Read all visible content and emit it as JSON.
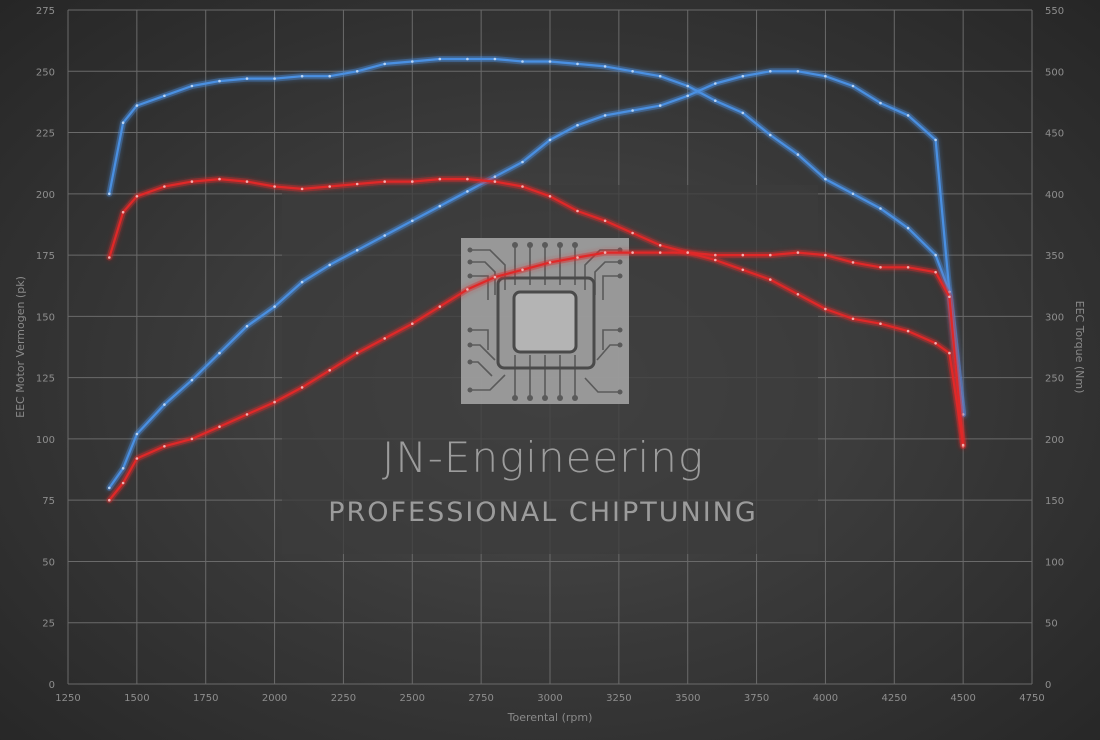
{
  "watermark": {
    "title": "JN-Engineering",
    "subtitle": "PROFESSIONAL CHIPTUNING",
    "emblem": "chip-logo"
  },
  "chart_data": {
    "type": "line",
    "xlabel": "Toerental (rpm)",
    "ylabel_left": "EEC Motor Vermogen (pk)",
    "ylabel_right": "EEC Torque (Nm)",
    "xlim": [
      1250,
      4750
    ],
    "ylim_left": [
      0,
      275
    ],
    "ylim_right": [
      0,
      550
    ],
    "x_ticks": [
      1250,
      1500,
      1750,
      2000,
      2250,
      2500,
      2750,
      3000,
      3250,
      3500,
      3750,
      4000,
      4250,
      4500,
      4750
    ],
    "y_ticks_left": [
      0,
      25,
      50,
      75,
      100,
      125,
      150,
      175,
      200,
      225,
      250,
      275
    ],
    "y_ticks_right": [
      0,
      50,
      100,
      150,
      200,
      250,
      300,
      350,
      400,
      450,
      500,
      550
    ],
    "grid": true,
    "colors": {
      "tuned": "#4a90e2",
      "stock": "#e02828"
    },
    "series": [
      {
        "id": "tuned-power",
        "axis": "left",
        "color": "#4a90e2",
        "x": [
          1400,
          1450,
          1500,
          1600,
          1700,
          1800,
          1900,
          2000,
          2100,
          2200,
          2300,
          2400,
          2500,
          2600,
          2700,
          2800,
          2900,
          3000,
          3100,
          3200,
          3300,
          3400,
          3500,
          3600,
          3700,
          3800,
          3900,
          4000,
          4100,
          4200,
          4300,
          4400,
          4450,
          4500
        ],
        "y": [
          80,
          88,
          102,
          114,
          124,
          135,
          146,
          154,
          164,
          171,
          177,
          183,
          189,
          195,
          201,
          207,
          213,
          222,
          228,
          232,
          234,
          236,
          240,
          245,
          248,
          250,
          250,
          248,
          244,
          237,
          232,
          222,
          160,
          110
        ]
      },
      {
        "id": "tuned-torque",
        "axis": "right",
        "color": "#4a90e2",
        "x": [
          1400,
          1450,
          1500,
          1600,
          1700,
          1800,
          1900,
          2000,
          2100,
          2200,
          2300,
          2400,
          2500,
          2600,
          2700,
          2800,
          2900,
          3000,
          3100,
          3200,
          3300,
          3400,
          3500,
          3600,
          3700,
          3800,
          3900,
          4000,
          4100,
          4200,
          4300,
          4400,
          4450,
          4500
        ],
        "y": [
          400,
          458,
          472,
          480,
          488,
          492,
          494,
          494,
          496,
          496,
          500,
          506,
          508,
          510,
          510,
          510,
          508,
          508,
          506,
          504,
          500,
          496,
          488,
          476,
          466,
          448,
          432,
          412,
          400,
          388,
          372,
          350,
          320,
          220
        ]
      },
      {
        "id": "stock-power",
        "axis": "left",
        "color": "#e02828",
        "x": [
          1400,
          1450,
          1500,
          1600,
          1700,
          1800,
          1900,
          2000,
          2100,
          2200,
          2300,
          2400,
          2500,
          2600,
          2700,
          2800,
          2900,
          3000,
          3100,
          3200,
          3300,
          3400,
          3500,
          3600,
          3700,
          3800,
          3900,
          4000,
          4100,
          4200,
          4300,
          4400,
          4450,
          4500
        ],
        "y": [
          75,
          82,
          92,
          97,
          100,
          105,
          110,
          115,
          121,
          128,
          135,
          141,
          147,
          154,
          161,
          166,
          169,
          172,
          174,
          176,
          176,
          176,
          176,
          175,
          175,
          175,
          176,
          175,
          172,
          170,
          170,
          168,
          158,
          97
        ]
      },
      {
        "id": "stock-torque",
        "axis": "right",
        "color": "#e02828",
        "x": [
          1400,
          1450,
          1500,
          1600,
          1700,
          1800,
          1900,
          2000,
          2100,
          2200,
          2300,
          2400,
          2500,
          2600,
          2700,
          2800,
          2900,
          3000,
          3100,
          3200,
          3300,
          3400,
          3500,
          3600,
          3700,
          3800,
          3900,
          4000,
          4100,
          4200,
          4300,
          4400,
          4450,
          4500
        ],
        "y": [
          348,
          385,
          398,
          406,
          410,
          412,
          410,
          406,
          404,
          406,
          408,
          410,
          410,
          412,
          412,
          410,
          406,
          398,
          386,
          378,
          368,
          358,
          352,
          346,
          338,
          330,
          318,
          306,
          298,
          294,
          288,
          278,
          270,
          195
        ]
      }
    ]
  }
}
